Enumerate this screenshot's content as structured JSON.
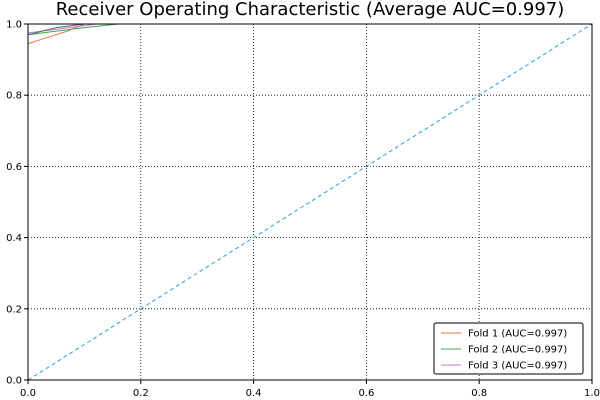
{
  "chart_data": {
    "type": "line",
    "title": "Receiver Operating Characteristic (Average AUC=0.997)",
    "xlabel": "",
    "ylabel": "",
    "xlim": [
      0,
      1
    ],
    "ylim": [
      0,
      1
    ],
    "x_ticks": [
      "0.0",
      "0.2",
      "0.4",
      "0.6",
      "0.8",
      "1.0"
    ],
    "y_ticks": [
      "0.0",
      "0.2",
      "0.4",
      "0.6",
      "0.8",
      "1.0"
    ],
    "grid": true,
    "grid_style": "dotted",
    "legend_position": "lower-right",
    "series": [
      {
        "name": "Fold 1 (AUC=0.997)",
        "color": "#e8734a",
        "x": [
          0.0,
          0.0,
          0.0,
          0.03,
          0.07,
          0.1,
          0.4,
          1.0
        ],
        "y": [
          0.0,
          0.5,
          0.945,
          0.96,
          0.98,
          1.0,
          1.0,
          1.0
        ]
      },
      {
        "name": "Fold 2 (AUC=0.997)",
        "color": "#4aa552",
        "x": [
          0.0,
          0.0,
          0.0,
          0.05,
          0.1,
          0.16,
          0.4,
          1.0
        ],
        "y": [
          0.0,
          0.5,
          0.97,
          0.98,
          0.99,
          1.0,
          1.0,
          1.0
        ]
      },
      {
        "name": "Fold 3 (AUC=0.997)",
        "color": "#c77ad8",
        "x": [
          0.0,
          0.0,
          0.0,
          0.05,
          0.1,
          0.12,
          0.4,
          1.0
        ],
        "y": [
          0.0,
          0.5,
          0.975,
          0.985,
          0.995,
          1.0,
          1.0,
          1.0
        ]
      },
      {
        "name": "",
        "color": "#5a6670",
        "x": [
          0.0,
          0.0,
          0.05,
          0.1,
          0.4,
          1.0
        ],
        "y": [
          0.0,
          0.97,
          0.99,
          1.0,
          1.0,
          1.0
        ]
      },
      {
        "name": "",
        "color": "#2a9fd8",
        "dashed": true,
        "x": [
          0.0,
          1.0
        ],
        "y": [
          0.0,
          1.0
        ]
      }
    ]
  }
}
